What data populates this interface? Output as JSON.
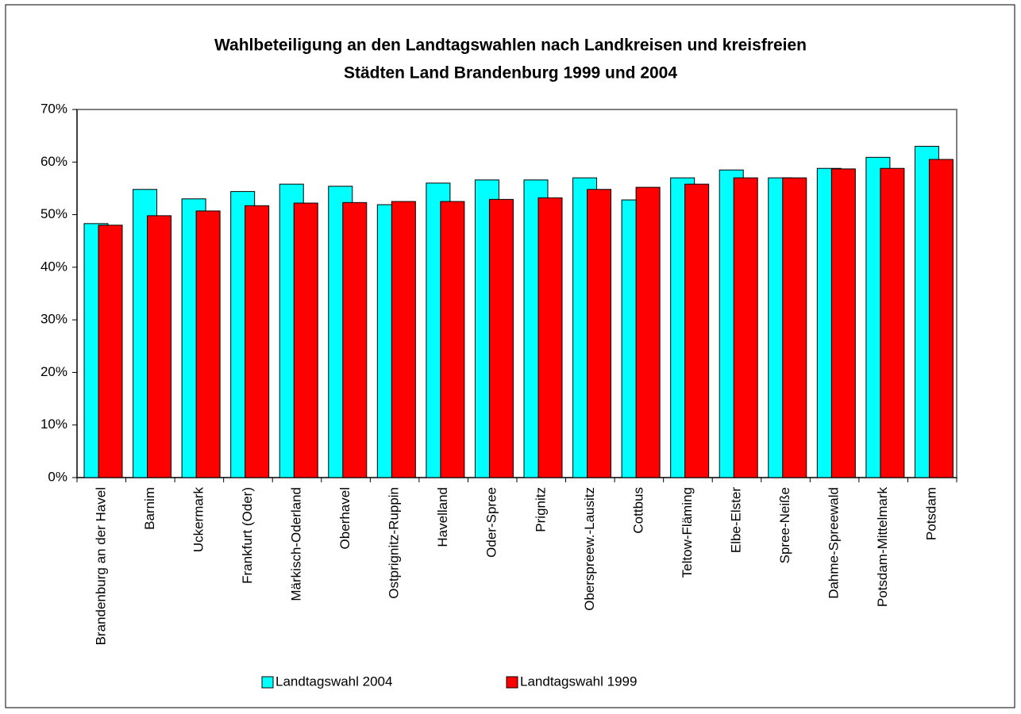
{
  "chart_data": {
    "type": "bar",
    "title": [
      "Wahlbeteiligung an den Landtagswahlen nach Landkreisen und kreisfreien",
      "Städten Land Brandenburg 1999 und 2004"
    ],
    "categories": [
      "Brandenburg an der Havel",
      "Barnim",
      "Uckermark",
      "Frankfurt (Oder)",
      "Märkisch-Oderland",
      "Oberhavel",
      "Ostprignitz-Ruppin",
      "Havelland",
      "Oder-Spree",
      "Prignitz",
      "Oberspreew.-Lausitz",
      "Cottbus",
      "Teltow-Fläming",
      "Elbe-Elster",
      "Spree-Neiße",
      "Dahme-Spreewald",
      "Potsdam-Mittelmark",
      "Potsdam"
    ],
    "series": [
      {
        "name": "Landtagswahl 2004",
        "color": "#00ffff",
        "values": [
          48.3,
          54.8,
          53.0,
          54.4,
          55.8,
          55.4,
          51.9,
          56.0,
          56.6,
          56.6,
          57.0,
          52.8,
          57.0,
          58.5,
          57.0,
          58.8,
          60.9,
          63.0
        ]
      },
      {
        "name": "Landtagswahl 1999",
        "color": "#ff0000",
        "values": [
          48.0,
          49.8,
          50.7,
          51.7,
          52.2,
          52.3,
          52.5,
          52.5,
          52.9,
          53.2,
          54.8,
          55.2,
          55.8,
          57.0,
          57.0,
          58.7,
          58.8,
          60.5
        ]
      }
    ],
    "ylim": [
      0,
      70
    ],
    "yticks": [
      {
        "value": 0,
        "label": "0%"
      },
      {
        "value": 10,
        "label": "10%"
      },
      {
        "value": 20,
        "label": "20%"
      },
      {
        "value": 30,
        "label": "30%"
      },
      {
        "value": 40,
        "label": "40%"
      },
      {
        "value": 50,
        "label": "50%"
      },
      {
        "value": 60,
        "label": "60%"
      },
      {
        "value": 70,
        "label": "70%"
      }
    ],
    "grid": false,
    "legend": "bottom"
  }
}
